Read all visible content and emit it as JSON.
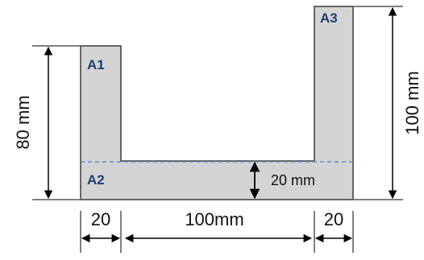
{
  "areas": {
    "a1": "A1",
    "a2": "A2",
    "a3": "A3"
  },
  "dimensions": {
    "left_height": "80 mm",
    "right_height": "100 mm",
    "flange_thickness": "20 mm",
    "left_width": "20",
    "middle_width": "100mm",
    "right_width": "20"
  },
  "colors": {
    "fill": "#d4d4d4",
    "stroke": "#3a3a3a",
    "area_label": "#1f3e73",
    "dashed_line": "#5b8fd1"
  }
}
